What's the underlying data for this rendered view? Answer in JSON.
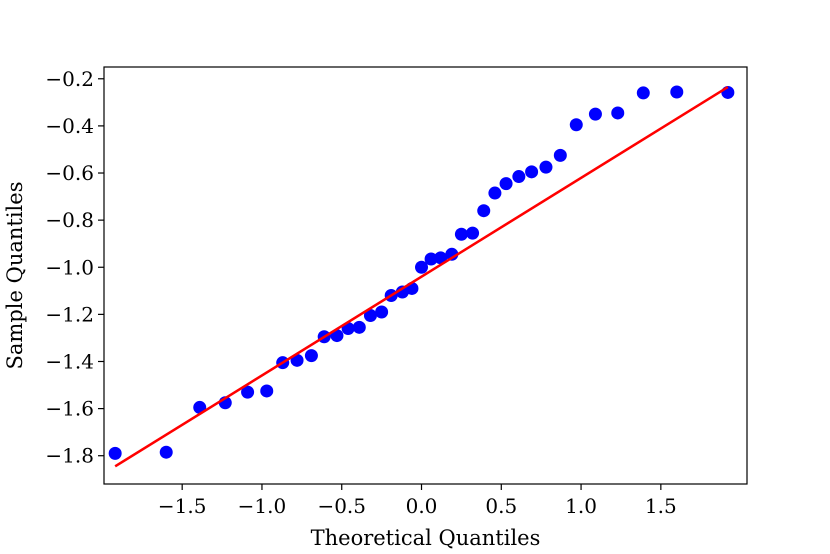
{
  "chart_data": {
    "type": "scatter",
    "title": "",
    "xlabel": "Theoretical Quantiles",
    "ylabel": "Sample Quantiles",
    "xlim": [
      -1.99,
      2.04
    ],
    "ylim": [
      -1.92,
      -0.15
    ],
    "grid": false,
    "x_ticks": [
      -1.5,
      -1.0,
      -0.5,
      0.0,
      0.5,
      1.0,
      1.5
    ],
    "x_tick_labels": [
      "−1.5",
      "−1.0",
      "−0.5",
      "0.0",
      "0.5",
      "1.0",
      "1.5"
    ],
    "y_ticks": [
      -0.2,
      -0.4,
      -0.6,
      -0.8,
      -1.0,
      -1.2,
      -1.4,
      -1.6,
      -1.8
    ],
    "y_tick_labels": [
      "−0.2",
      "−0.4",
      "−0.6",
      "−0.8",
      "−1.0",
      "−1.2",
      "−1.4",
      "−1.6",
      "−1.8"
    ],
    "points": {
      "color": "#0000ff",
      "x": [
        -1.92,
        -1.6,
        -1.39,
        -1.23,
        -1.09,
        -0.97,
        -0.87,
        -0.78,
        -0.69,
        -0.61,
        -0.53,
        -0.46,
        -0.39,
        -0.32,
        -0.25,
        -0.19,
        -0.12,
        -0.06,
        0.0,
        0.06,
        0.12,
        0.19,
        0.25,
        0.32,
        0.39,
        0.46,
        0.53,
        0.61,
        0.69,
        0.78,
        0.87,
        0.97,
        1.09,
        1.23,
        1.39,
        1.6,
        1.92
      ],
      "y": [
        -1.79,
        -1.785,
        -1.595,
        -1.575,
        -1.53,
        -1.525,
        -1.405,
        -1.395,
        -1.375,
        -1.295,
        -1.29,
        -1.26,
        -1.255,
        -1.205,
        -1.19,
        -1.12,
        -1.105,
        -1.09,
        -1.0,
        -0.965,
        -0.96,
        -0.945,
        -0.86,
        -0.855,
        -0.76,
        -0.685,
        -0.645,
        -0.615,
        -0.595,
        -0.575,
        -0.525,
        -0.395,
        -0.35,
        -0.345,
        -0.26,
        -0.256,
        -0.258
      ]
    },
    "reference_line": {
      "color": "#ff0000",
      "x": [
        -1.92,
        1.92
      ],
      "y": [
        -1.845,
        -0.235
      ]
    }
  }
}
